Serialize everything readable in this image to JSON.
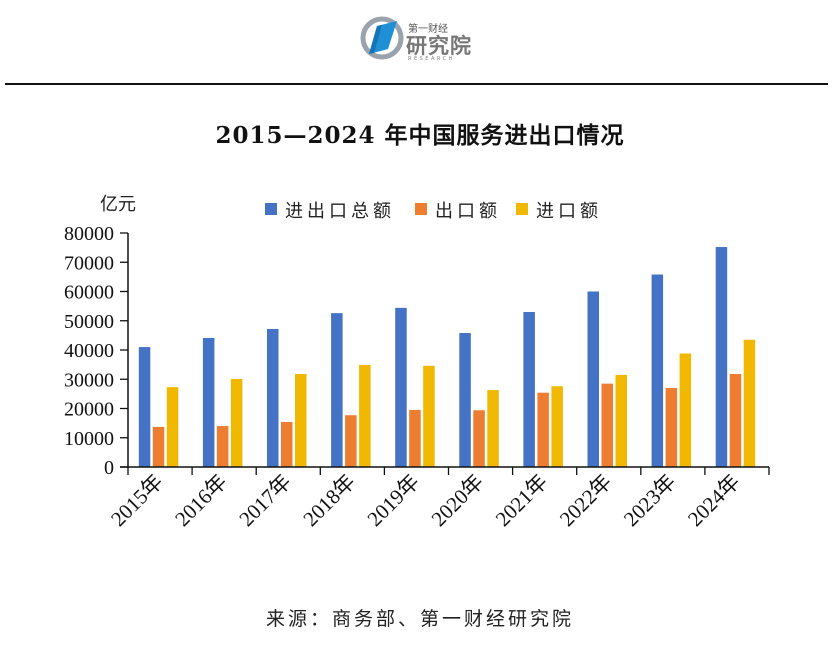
{
  "header": {
    "logo_small": "第一财经",
    "logo_big": "研究院",
    "logo_en": "RESEARCH"
  },
  "footer": {
    "source": "来源：商务部、第一财经研究院"
  },
  "colors": {
    "total": "#4472C4",
    "export": "#ED7D31",
    "import": "#F0B800",
    "axis": "#111111"
  },
  "chart_data": {
    "type": "bar",
    "title": "2015—2024 年中国服务进出口情况",
    "xlabel": "",
    "ylabel": "亿元",
    "ylim": [
      0,
      80000
    ],
    "yticks": [
      0,
      10000,
      20000,
      30000,
      40000,
      50000,
      60000,
      70000,
      80000
    ],
    "grid": false,
    "legend_position": "top-center",
    "categories": [
      "2015年",
      "2016年",
      "2017年",
      "2018年",
      "2019年",
      "2020年",
      "2021年",
      "2022年",
      "2023年",
      "2024年"
    ],
    "series": [
      {
        "name": "进出口总额",
        "color_key": "total",
        "values": [
          41000,
          44100,
          47200,
          52600,
          54400,
          45800,
          53000,
          60000,
          65800,
          75200
        ]
      },
      {
        "name": "出口额",
        "color_key": "export",
        "values": [
          13700,
          14000,
          15400,
          17700,
          19500,
          19400,
          25400,
          28500,
          27000,
          31800
        ]
      },
      {
        "name": "进口额",
        "color_key": "import",
        "values": [
          27300,
          30100,
          31800,
          34900,
          34600,
          26300,
          27600,
          31500,
          38800,
          43500
        ]
      }
    ]
  }
}
